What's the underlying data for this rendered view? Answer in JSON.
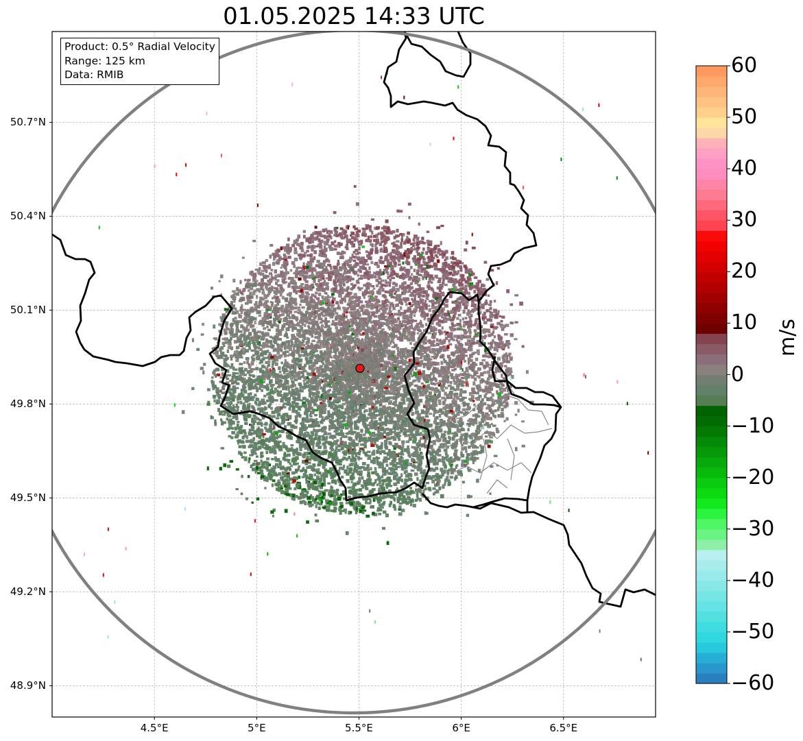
{
  "title": "01.05.2025 14:33 UTC",
  "info_box": {
    "product": "Product: 0.5° Radial Velocity",
    "range": "Range: 125 km",
    "data": "Data: RMIB"
  },
  "map": {
    "lon_range": [
      4.0,
      6.95
    ],
    "lat_range": [
      48.8,
      50.99
    ],
    "lat_ticks": [
      {
        "value": 50.7,
        "label": "50.7°N"
      },
      {
        "value": 50.4,
        "label": "50.4°N"
      },
      {
        "value": 50.1,
        "label": "50.1°N"
      },
      {
        "value": 49.8,
        "label": "49.8°N"
      },
      {
        "value": 49.5,
        "label": "49.5°N"
      },
      {
        "value": 49.2,
        "label": "49.2°N"
      },
      {
        "value": 48.9,
        "label": "48.9°N"
      }
    ],
    "lon_ticks": [
      {
        "value": 4.5,
        "label": "4.5°E"
      },
      {
        "value": 5.0,
        "label": "5°E"
      },
      {
        "value": 5.5,
        "label": "5.5°E"
      },
      {
        "value": 6.0,
        "label": "6°E"
      },
      {
        "value": 6.5,
        "label": "6.5°E"
      }
    ],
    "radar_site": {
      "lon": 5.505,
      "lat": 49.914
    },
    "range_ring_km": 125
  },
  "colorbar": {
    "unit": "m/s",
    "min": -60,
    "max": 60,
    "ticks": [
      {
        "value": 60,
        "label": "60"
      },
      {
        "value": 50,
        "label": "50"
      },
      {
        "value": 40,
        "label": "40"
      },
      {
        "value": 30,
        "label": "30"
      },
      {
        "value": 20,
        "label": "20"
      },
      {
        "value": 10,
        "label": "10"
      },
      {
        "value": 0,
        "label": "0"
      },
      {
        "value": -10,
        "label": "−10"
      },
      {
        "value": -20,
        "label": "−20"
      },
      {
        "value": -30,
        "label": "−30"
      },
      {
        "value": -40,
        "label": "−40"
      },
      {
        "value": -50,
        "label": "−50"
      },
      {
        "value": -60,
        "label": "−60"
      }
    ],
    "segments": [
      {
        "from": -60,
        "to": -58,
        "color": "#2b7fbf"
      },
      {
        "from": -58,
        "to": -56,
        "color": "#2897cc"
      },
      {
        "from": -56,
        "to": -54,
        "color": "#26aed5"
      },
      {
        "from": -54,
        "to": -52,
        "color": "#27c9dd"
      },
      {
        "from": -52,
        "to": -50,
        "color": "#2fd8df"
      },
      {
        "from": -50,
        "to": -48,
        "color": "#3edddf"
      },
      {
        "from": -48,
        "to": -46,
        "color": "#52e1e0"
      },
      {
        "from": -46,
        "to": -44,
        "color": "#63e3e3"
      },
      {
        "from": -44,
        "to": -42,
        "color": "#76e6e5"
      },
      {
        "from": -42,
        "to": -40,
        "color": "#88e8e8"
      },
      {
        "from": -40,
        "to": -38,
        "color": "#99eaea"
      },
      {
        "from": -38,
        "to": -36,
        "color": "#a9ecec"
      },
      {
        "from": -36,
        "to": -34,
        "color": "#b9efef"
      },
      {
        "from": -34,
        "to": -32,
        "color": "#8ef0a6"
      },
      {
        "from": -32,
        "to": -30,
        "color": "#6cf482"
      },
      {
        "from": -30,
        "to": -28,
        "color": "#4ff665"
      },
      {
        "from": -28,
        "to": -26,
        "color": "#2af43e"
      },
      {
        "from": -26,
        "to": -24,
        "color": "#12ea1e"
      },
      {
        "from": -24,
        "to": -22,
        "color": "#0cdb12"
      },
      {
        "from": -22,
        "to": -20,
        "color": "#0acb10"
      },
      {
        "from": -20,
        "to": -18,
        "color": "#09ba0d"
      },
      {
        "from": -18,
        "to": -16,
        "color": "#07aa0b"
      },
      {
        "from": -16,
        "to": -14,
        "color": "#069a09"
      },
      {
        "from": -14,
        "to": -12,
        "color": "#058a07"
      },
      {
        "from": -12,
        "to": -10,
        "color": "#047a05"
      },
      {
        "from": -10,
        "to": -8,
        "color": "#036b04"
      },
      {
        "from": -8,
        "to": -6,
        "color": "#006200"
      },
      {
        "from": -6,
        "to": -4,
        "color": "#557e55"
      },
      {
        "from": -4,
        "to": -2,
        "color": "#63806a"
      },
      {
        "from": -2,
        "to": 0,
        "color": "#737e73"
      },
      {
        "from": 0,
        "to": 2,
        "color": "#8a807e"
      },
      {
        "from": 2,
        "to": 4,
        "color": "#8b6e7a"
      },
      {
        "from": 4,
        "to": 6,
        "color": "#8a5a66"
      },
      {
        "from": 6,
        "to": 8,
        "color": "#84444f"
      },
      {
        "from": 8,
        "to": 10,
        "color": "#6e0000"
      },
      {
        "from": 10,
        "to": 12,
        "color": "#7e0000"
      },
      {
        "from": 12,
        "to": 14,
        "color": "#8f0000"
      },
      {
        "from": 14,
        "to": 16,
        "color": "#a00000"
      },
      {
        "from": 16,
        "to": 18,
        "color": "#b20000"
      },
      {
        "from": 18,
        "to": 20,
        "color": "#c20000"
      },
      {
        "from": 20,
        "to": 22,
        "color": "#d30000"
      },
      {
        "from": 22,
        "to": 24,
        "color": "#e40000"
      },
      {
        "from": 24,
        "to": 26,
        "color": "#f20000"
      },
      {
        "from": 26,
        "to": 28,
        "color": "#fb0a0a"
      },
      {
        "from": 28,
        "to": 30,
        "color": "#fe4452"
      },
      {
        "from": 30,
        "to": 32,
        "color": "#fe5566"
      },
      {
        "from": 32,
        "to": 34,
        "color": "#fe6a7c"
      },
      {
        "from": 34,
        "to": 36,
        "color": "#fe7c92"
      },
      {
        "from": 36,
        "to": 38,
        "color": "#fe85a8"
      },
      {
        "from": 38,
        "to": 40,
        "color": "#fe8dbe"
      },
      {
        "from": 40,
        "to": 42,
        "color": "#fe92c6"
      },
      {
        "from": 42,
        "to": 44,
        "color": "#fea0c4"
      },
      {
        "from": 44,
        "to": 46,
        "color": "#feb2b8"
      },
      {
        "from": 46,
        "to": 48,
        "color": "#fed7a8"
      },
      {
        "from": 48,
        "to": 50,
        "color": "#fee59a"
      },
      {
        "from": 50,
        "to": 52,
        "color": "#fed08c"
      },
      {
        "from": 52,
        "to": 54,
        "color": "#fec282"
      },
      {
        "from": 54,
        "to": 56,
        "color": "#feb578"
      },
      {
        "from": 56,
        "to": 58,
        "color": "#fea86d"
      },
      {
        "from": 58,
        "to": 60,
        "color": "#fe9a60"
      }
    ]
  }
}
